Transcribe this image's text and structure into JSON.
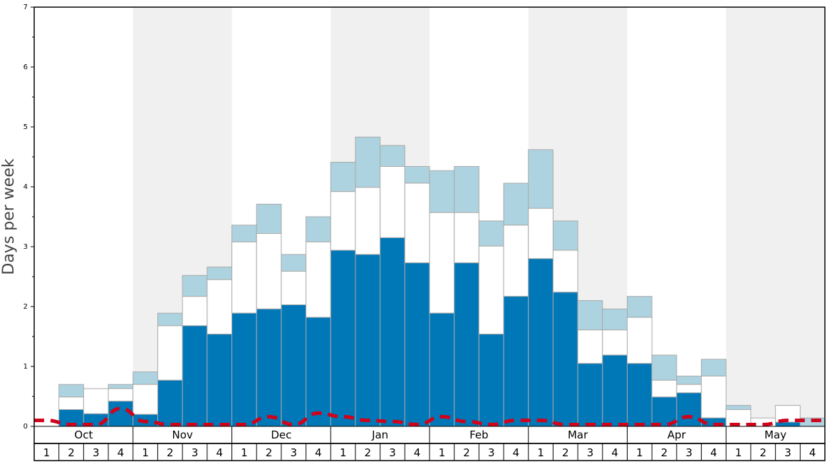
{
  "chart_data": {
    "type": "bar",
    "stacked": true,
    "ylabel": "Days per week",
    "ylim": [
      0,
      7
    ],
    "yticks": [
      "0",
      "1",
      "2",
      "3",
      "4",
      "5",
      "6",
      "7"
    ],
    "months": [
      "Oct",
      "Nov",
      "Dec",
      "Jan",
      "Feb",
      "Mar",
      "Apr",
      "May"
    ],
    "week_labels": [
      "1",
      "2",
      "3",
      "4"
    ],
    "shaded_months": [
      "Nov",
      "Jan",
      "Mar",
      "May"
    ],
    "colors": {
      "dark": "#0077b6",
      "middle": "#ffffff",
      "top": "#add3e0",
      "line": "#d0021b",
      "shade": "#f0f0f0",
      "bar_edge": "#aaaaaa"
    },
    "series": {
      "dark_top": [
        0.0,
        0.28,
        0.21,
        0.42,
        0.2,
        0.77,
        1.68,
        1.54,
        1.89,
        1.96,
        2.03,
        1.82,
        2.94,
        2.87,
        3.15,
        2.73,
        1.89,
        2.73,
        1.54,
        2.17,
        2.8,
        2.24,
        1.05,
        1.19,
        1.05,
        0.49,
        0.56,
        0.14,
        0.0,
        0.0,
        0.07,
        0.0
      ],
      "middle_top": [
        0.0,
        0.49,
        0.63,
        0.63,
        0.7,
        1.68,
        2.17,
        2.45,
        3.08,
        3.22,
        2.59,
        3.08,
        3.92,
        3.99,
        4.34,
        4.06,
        3.57,
        3.57,
        3.01,
        3.36,
        3.64,
        2.94,
        1.61,
        1.61,
        1.82,
        0.77,
        0.7,
        0.84,
        0.28,
        0.14,
        0.35,
        0.0
      ],
      "light_top": [
        0.0,
        0.7,
        0.63,
        0.7,
        0.91,
        1.89,
        2.52,
        2.66,
        3.36,
        3.71,
        2.87,
        3.5,
        4.41,
        4.83,
        4.69,
        4.34,
        4.27,
        4.34,
        3.43,
        4.06,
        4.62,
        3.43,
        2.1,
        1.96,
        2.17,
        1.19,
        0.84,
        1.12,
        0.35,
        0.14,
        0.35,
        0.14
      ],
      "dashed_line": [
        0.1,
        0.03,
        0.03,
        0.3,
        0.08,
        0.03,
        0.03,
        0.03,
        0.03,
        0.16,
        0.03,
        0.22,
        0.16,
        0.1,
        0.08,
        0.03,
        0.16,
        0.08,
        0.03,
        0.1,
        0.1,
        0.03,
        0.03,
        0.03,
        0.03,
        0.03,
        0.16,
        0.03,
        0.03,
        0.03,
        0.1,
        0.1
      ]
    }
  }
}
